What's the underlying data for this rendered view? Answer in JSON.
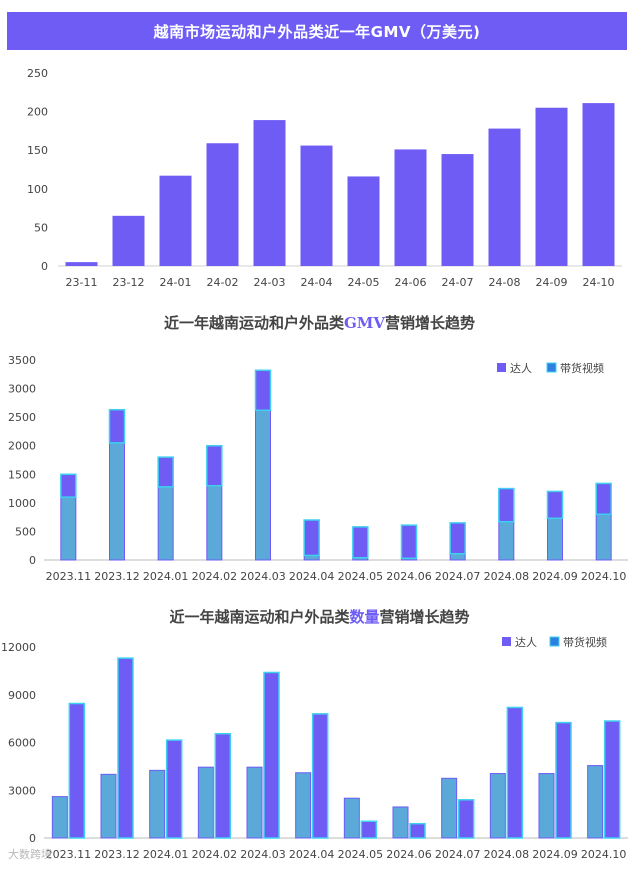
{
  "header": {
    "title": "越南市场运动和户外品类近一年GMV（万美元)"
  },
  "chart2_title": {
    "pre": "近一年越南运动和户外品类",
    "hl": "GMV",
    "post": "营销增长趋势"
  },
  "chart3_title": {
    "pre": "近一年越南运动和户外品类",
    "hl": "数量",
    "post": "营销增长趋势"
  },
  "watermark": "大数跨境",
  "colors": {
    "accent": "#6e5cf5",
    "blue_bar": "#5aa9d9",
    "cyan_edge": "#3fd0f0"
  },
  "chart_data": [
    {
      "type": "bar",
      "title": "越南市场运动和户外品类近一年GMV（万美元)",
      "categories": [
        "23-11",
        "23-12",
        "24-01",
        "24-02",
        "24-03",
        "24-04",
        "24-05",
        "24-06",
        "24-07",
        "24-08",
        "24-09",
        "24-10"
      ],
      "values": [
        5,
        65,
        117,
        159,
        189,
        156,
        116,
        151,
        145,
        178,
        205,
        211
      ],
      "ylim": [
        0,
        250
      ],
      "yticks": [
        0,
        50,
        100,
        150,
        200,
        250
      ],
      "grid": false
    },
    {
      "type": "bar",
      "stacked": true,
      "title": "近一年越南运动和户外品类GMV营销增长趋势",
      "categories": [
        "2023.11",
        "2023.12",
        "2024.01",
        "2024.02",
        "2024.03",
        "2024.04",
        "2024.05",
        "2024.06",
        "2024.07",
        "2024.08",
        "2024.09",
        "2024.10"
      ],
      "series": [
        {
          "name": "带货视频",
          "values": [
            1100,
            2050,
            1280,
            1300,
            2620,
            80,
            40,
            30,
            110,
            670,
            730,
            800
          ]
        },
        {
          "name": "达人",
          "values": [
            400,
            580,
            520,
            700,
            700,
            620,
            540,
            580,
            540,
            580,
            470,
            540
          ]
        }
      ],
      "ylim": [
        0,
        3500
      ],
      "yticks": [
        0,
        500,
        1000,
        1500,
        2000,
        2500,
        3000,
        3500
      ],
      "legend": "top-right",
      "legend_order": [
        "达人",
        "带货视频"
      ]
    },
    {
      "type": "bar",
      "title": "近一年越南运动和户外品类数量营销增长趋势",
      "categories": [
        "2023.11",
        "2023.12",
        "2024.01",
        "2024.02",
        "2024.03",
        "2024.04",
        "2024.05",
        "2024.06",
        "2024.07",
        "2024.08",
        "2024.09",
        "2024.10"
      ],
      "series": [
        {
          "name": "达人",
          "values": [
            2600,
            4000,
            4250,
            4450,
            4450,
            4100,
            2500,
            1950,
            3750,
            4050,
            4050,
            4550
          ]
        },
        {
          "name": "带货视频",
          "values": [
            8450,
            11300,
            6150,
            6550,
            10400,
            7800,
            1050,
            900,
            2400,
            8200,
            7250,
            7350
          ]
        }
      ],
      "ylim": [
        0,
        12000
      ],
      "yticks": [
        0,
        3000,
        6000,
        9000,
        12000
      ],
      "legend": "top-right"
    }
  ]
}
